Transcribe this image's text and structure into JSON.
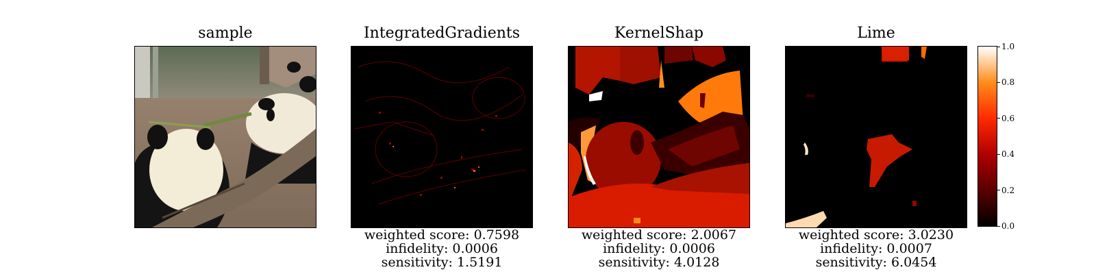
{
  "panels": [
    {
      "title": "sample",
      "metrics": []
    },
    {
      "title": "IntegratedGradients",
      "metrics": [
        "weighted score: 0.7598",
        "infidelity: 0.0006",
        "sensitivity: 1.5191"
      ]
    },
    {
      "title": "KernelShap",
      "metrics": [
        "weighted score: 2.0067",
        "infidelity: 0.0006",
        "sensitivity: 4.0128"
      ]
    },
    {
      "title": "Lime",
      "metrics": [
        "weighted score: 3.0230",
        "infidelity: 0.0007",
        "sensitivity: 6.0454"
      ]
    }
  ],
  "colormap": {
    "name": "gist_heat",
    "stops": [
      "#000000",
      "#5a0000",
      "#b00000",
      "#ff2a00",
      "#ff8c1a",
      "#ffffff"
    ]
  },
  "chart_data": {
    "type": "heatmap",
    "colorbar": {
      "range": [
        0.0,
        1.0
      ],
      "ticks": [
        "0.0",
        "0.2",
        "0.4",
        "0.6",
        "0.8",
        "1.0"
      ]
    },
    "panels": [
      "sample",
      "IntegratedGradients",
      "KernelShap",
      "Lime"
    ],
    "metrics": {
      "IntegratedGradients": {
        "weighted_score": 0.7598,
        "infidelity": 0.0006,
        "sensitivity": 1.5191
      },
      "KernelShap": {
        "weighted_score": 2.0067,
        "infidelity": 0.0006,
        "sensitivity": 4.0128
      },
      "Lime": {
        "weighted_score": 3.023,
        "infidelity": 0.0007,
        "sensitivity": 6.0454
      }
    }
  }
}
